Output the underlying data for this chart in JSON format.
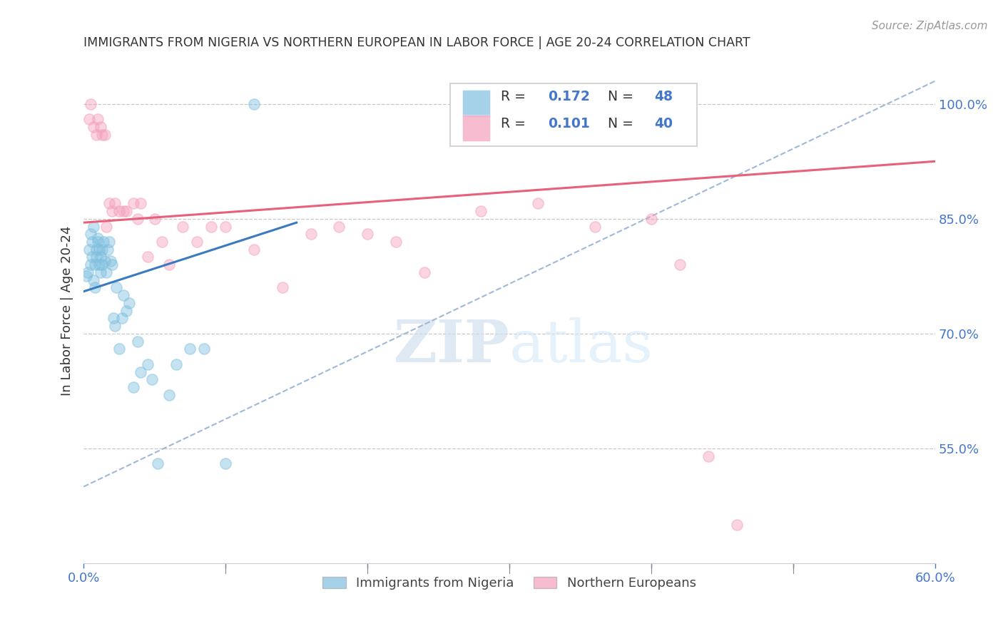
{
  "title": "IMMIGRANTS FROM NIGERIA VS NORTHERN EUROPEAN IN LABOR FORCE | AGE 20-24 CORRELATION CHART",
  "source": "Source: ZipAtlas.com",
  "ylabel": "In Labor Force | Age 20-24",
  "xlim": [
    0.0,
    0.6
  ],
  "ylim": [
    0.4,
    1.06
  ],
  "yticks": [
    0.55,
    0.7,
    0.85,
    1.0
  ],
  "ytick_labels": [
    "55.0%",
    "70.0%",
    "85.0%",
    "100.0%"
  ],
  "watermark": "ZIPatlas",
  "nigeria_color": "#7fbfdf",
  "northern_color": "#f4a0bc",
  "nigeria_line_color": "#3a7abf",
  "northern_line_color": "#e8607a",
  "dashed_line_color": "#a0b8d8",
  "nigeria_x": [
    0.002,
    0.003,
    0.004,
    0.005,
    0.005,
    0.006,
    0.006,
    0.007,
    0.007,
    0.008,
    0.008,
    0.009,
    0.009,
    0.01,
    0.01,
    0.011,
    0.011,
    0.012,
    0.012,
    0.013,
    0.013,
    0.014,
    0.015,
    0.016,
    0.017,
    0.018,
    0.019,
    0.02,
    0.021,
    0.022,
    0.023,
    0.025,
    0.027,
    0.028,
    0.03,
    0.032,
    0.035,
    0.038,
    0.04,
    0.045,
    0.048,
    0.052,
    0.06,
    0.065,
    0.075,
    0.085,
    0.1,
    0.12
  ],
  "nigeria_y": [
    0.775,
    0.78,
    0.81,
    0.79,
    0.83,
    0.82,
    0.8,
    0.84,
    0.77,
    0.79,
    0.76,
    0.8,
    0.81,
    0.82,
    0.825,
    0.81,
    0.79,
    0.78,
    0.8,
    0.79,
    0.81,
    0.82,
    0.795,
    0.78,
    0.81,
    0.82,
    0.795,
    0.79,
    0.72,
    0.71,
    0.76,
    0.68,
    0.72,
    0.75,
    0.73,
    0.74,
    0.63,
    0.69,
    0.65,
    0.66,
    0.64,
    0.53,
    0.62,
    0.66,
    0.68,
    0.68,
    0.53,
    1.0
  ],
  "northern_x": [
    0.004,
    0.005,
    0.007,
    0.009,
    0.01,
    0.012,
    0.013,
    0.015,
    0.016,
    0.018,
    0.02,
    0.022,
    0.025,
    0.028,
    0.03,
    0.035,
    0.038,
    0.04,
    0.045,
    0.05,
    0.055,
    0.06,
    0.07,
    0.08,
    0.09,
    0.1,
    0.12,
    0.14,
    0.16,
    0.18,
    0.2,
    0.22,
    0.24,
    0.28,
    0.32,
    0.36,
    0.4,
    0.42,
    0.44,
    0.46
  ],
  "northern_y": [
    0.98,
    1.0,
    0.97,
    0.96,
    0.98,
    0.97,
    0.96,
    0.96,
    0.84,
    0.87,
    0.86,
    0.87,
    0.86,
    0.86,
    0.86,
    0.87,
    0.85,
    0.87,
    0.8,
    0.85,
    0.82,
    0.79,
    0.84,
    0.82,
    0.84,
    0.84,
    0.81,
    0.76,
    0.83,
    0.84,
    0.83,
    0.82,
    0.78,
    0.86,
    0.87,
    0.84,
    0.85,
    0.79,
    0.54,
    0.45
  ],
  "background_color": "#ffffff",
  "grid_color": "#c8c8c8",
  "axis_color": "#4477cc",
  "title_color": "#333333",
  "marker_size": 120,
  "marker_alpha": 0.45,
  "legend_r1_val": "0.172",
  "legend_n1_val": "48",
  "legend_r2_val": "0.101",
  "legend_n2_val": "40"
}
